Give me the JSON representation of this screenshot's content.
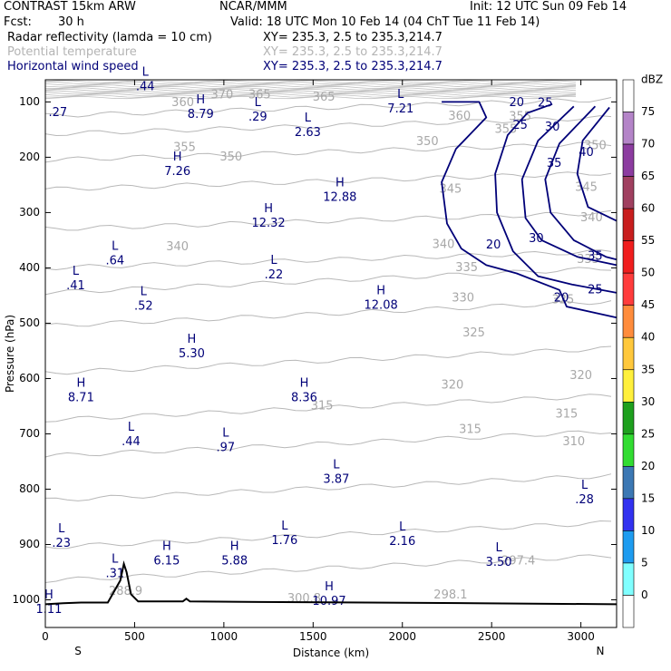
{
  "header": {
    "model": "CONTRAST 15km ARW",
    "org": "NCAR/MMM",
    "init": "Init: 12 UTC Sun 09 Feb 14",
    "fcst_label": "Fcst:",
    "fcst_value": "30 h",
    "valid": "Valid: 18 UTC Mon 10 Feb 14 (04 ChT Tue 11 Feb 14)",
    "fields": [
      {
        "name": "Radar reflectivity (lamda = 10 cm)",
        "xy": "XY= 235.3,  2.5 to 235.3,214.7",
        "color": "#000000"
      },
      {
        "name": "Potential temperature",
        "xy": "XY= 235.3,  2.5 to 235.3,214.7",
        "color": "#b4b4b4"
      },
      {
        "name": "Horizontal wind speed",
        "xy": "XY= 235.3,  2.5 to 235.3,214.7",
        "color": "#000078"
      }
    ]
  },
  "chart_data": {
    "type": "cross-section contour",
    "xlabel": "Distance (km)",
    "ylabel": "Pressure (hPa)",
    "xlim": [
      0,
      3200
    ],
    "ylim": [
      1050,
      60
    ],
    "x_ticks": [
      0,
      500,
      1000,
      1500,
      2000,
      2500,
      3000
    ],
    "y_ticks": [
      100,
      200,
      300,
      400,
      500,
      600,
      700,
      800,
      900,
      1000
    ],
    "x_end_labels": {
      "left": "S",
      "right": "N"
    },
    "theta_labels": [
      {
        "x": 990,
        "p": 88,
        "text": "370"
      },
      {
        "x": 1200,
        "p": 88,
        "text": "365"
      },
      {
        "x": 1560,
        "p": 92,
        "text": "365"
      },
      {
        "x": 770,
        "p": 102,
        "text": "360"
      },
      {
        "x": 2320,
        "p": 126,
        "text": "360"
      },
      {
        "x": 2660,
        "p": 127,
        "text": "355"
      },
      {
        "x": 2580,
        "p": 150,
        "text": "355"
      },
      {
        "x": 3080,
        "p": 180,
        "text": "350"
      },
      {
        "x": 2140,
        "p": 172,
        "text": "350"
      },
      {
        "x": 780,
        "p": 183,
        "text": "355"
      },
      {
        "x": 1040,
        "p": 200,
        "text": "350"
      },
      {
        "x": 3030,
        "p": 255,
        "text": "345"
      },
      {
        "x": 2270,
        "p": 258,
        "text": "345"
      },
      {
        "x": 3060,
        "p": 310,
        "text": "340"
      },
      {
        "x": 2230,
        "p": 358,
        "text": "340"
      },
      {
        "x": 740,
        "p": 362,
        "text": "340"
      },
      {
        "x": 3040,
        "p": 385,
        "text": "335"
      },
      {
        "x": 2360,
        "p": 400,
        "text": "335"
      },
      {
        "x": 2340,
        "p": 455,
        "text": "330"
      },
      {
        "x": 2900,
        "p": 458,
        "text": "325"
      },
      {
        "x": 2400,
        "p": 518,
        "text": "325"
      },
      {
        "x": 3000,
        "p": 595,
        "text": "320"
      },
      {
        "x": 2280,
        "p": 612,
        "text": "320"
      },
      {
        "x": 2920,
        "p": 665,
        "text": "315"
      },
      {
        "x": 1550,
        "p": 650,
        "text": "315"
      },
      {
        "x": 2380,
        "p": 693,
        "text": "315"
      },
      {
        "x": 2960,
        "p": 715,
        "text": "310"
      },
      {
        "x": 2650,
        "p": 930,
        "text": "297.4"
      },
      {
        "x": 450,
        "p": 985,
        "text": "288.9"
      },
      {
        "x": 1450,
        "p": 998,
        "text": "300.8"
      },
      {
        "x": 2270,
        "p": 992,
        "text": "298.1"
      }
    ],
    "wind_contour_labels": [
      {
        "x": 2640,
        "p": 102,
        "text": "20"
      },
      {
        "x": 2800,
        "p": 103,
        "text": "25"
      },
      {
        "x": 2660,
        "p": 143,
        "text": "25"
      },
      {
        "x": 2840,
        "p": 146,
        "text": "30"
      },
      {
        "x": 2850,
        "p": 212,
        "text": "35"
      },
      {
        "x": 3030,
        "p": 192,
        "text": "40"
      },
      {
        "x": 2510,
        "p": 359,
        "text": "20"
      },
      {
        "x": 2750,
        "p": 348,
        "text": "30"
      },
      {
        "x": 3080,
        "p": 380,
        "text": "35"
      },
      {
        "x": 2890,
        "p": 455,
        "text": "20"
      },
      {
        "x": 3080,
        "p": 440,
        "text": "25"
      }
    ],
    "hl_markers": [
      {
        "x": 560,
        "p": 60,
        "letter": "L",
        "value": ".44"
      },
      {
        "x": 70,
        "p": 107,
        "letter": "",
        "value": ".27"
      },
      {
        "x": 870,
        "p": 110,
        "letter": "H",
        "value": "8.79"
      },
      {
        "x": 1190,
        "p": 115,
        "letter": "L",
        "value": ".29"
      },
      {
        "x": 1470,
        "p": 143,
        "letter": "L",
        "value": "2.63"
      },
      {
        "x": 1990,
        "p": 100,
        "letter": "L",
        "value": "7.21"
      },
      {
        "x": 740,
        "p": 213,
        "letter": "H",
        "value": "7.26"
      },
      {
        "x": 1650,
        "p": 260,
        "letter": "H",
        "value": "12.88"
      },
      {
        "x": 1250,
        "p": 307,
        "letter": "H",
        "value": "12.32"
      },
      {
        "x": 390,
        "p": 375,
        "letter": "L",
        "value": ".64"
      },
      {
        "x": 1280,
        "p": 400,
        "letter": "L",
        "value": ".22"
      },
      {
        "x": 170,
        "p": 420,
        "letter": "L",
        "value": ".41"
      },
      {
        "x": 550,
        "p": 457,
        "letter": "L",
        "value": ".52"
      },
      {
        "x": 1880,
        "p": 455,
        "letter": "H",
        "value": "12.08"
      },
      {
        "x": 820,
        "p": 543,
        "letter": "H",
        "value": "5.30"
      },
      {
        "x": 200,
        "p": 622,
        "letter": "H",
        "value": "8.71"
      },
      {
        "x": 1450,
        "p": 622,
        "letter": "H",
        "value": "8.36"
      },
      {
        "x": 480,
        "p": 702,
        "letter": "L",
        "value": ".44"
      },
      {
        "x": 1010,
        "p": 712,
        "letter": "L",
        "value": ".97"
      },
      {
        "x": 1630,
        "p": 770,
        "letter": "L",
        "value": "3.87"
      },
      {
        "x": 3020,
        "p": 807,
        "letter": "L",
        "value": ".28"
      },
      {
        "x": 90,
        "p": 885,
        "letter": "L",
        "value": ".23"
      },
      {
        "x": 1340,
        "p": 880,
        "letter": "L",
        "value": "1.76"
      },
      {
        "x": 2000,
        "p": 882,
        "letter": "L",
        "value": "2.16"
      },
      {
        "x": 680,
        "p": 917,
        "letter": "H",
        "value": "6.15"
      },
      {
        "x": 1060,
        "p": 917,
        "letter": "H",
        "value": "5.88"
      },
      {
        "x": 2540,
        "p": 920,
        "letter": "L",
        "value": "3.50"
      },
      {
        "x": 390,
        "p": 940,
        "letter": "L",
        "value": ".31"
      },
      {
        "x": 1590,
        "p": 990,
        "letter": "H",
        "value": "10.97"
      },
      {
        "x": 20,
        "p": 1005,
        "letter": "H",
        "value": "1.11"
      }
    ],
    "wind_contours": [
      {
        "level": 20,
        "points": [
          [
            2220,
            100
          ],
          [
            2430,
            100
          ],
          [
            2470,
            128
          ],
          [
            2300,
            185
          ],
          [
            2220,
            245
          ],
          [
            2250,
            320
          ],
          [
            2330,
            365
          ],
          [
            2470,
            395
          ],
          [
            2640,
            410
          ],
          [
            2880,
            440
          ],
          [
            2920,
            470
          ],
          [
            3200,
            490
          ]
        ]
      },
      {
        "level": 25,
        "points": [
          [
            2840,
            104
          ],
          [
            2700,
            120
          ],
          [
            2590,
            160
          ],
          [
            2520,
            230
          ],
          [
            2530,
            300
          ],
          [
            2620,
            370
          ],
          [
            2760,
            415
          ],
          [
            2950,
            430
          ],
          [
            3200,
            445
          ]
        ]
      },
      {
        "level": 30,
        "points": [
          [
            2960,
            108
          ],
          [
            2760,
            170
          ],
          [
            2670,
            240
          ],
          [
            2690,
            310
          ],
          [
            2780,
            350
          ],
          [
            2980,
            380
          ],
          [
            3200,
            395
          ]
        ]
      },
      {
        "level": 35,
        "points": [
          [
            3080,
            108
          ],
          [
            2880,
            175
          ],
          [
            2800,
            240
          ],
          [
            2830,
            300
          ],
          [
            2960,
            350
          ],
          [
            3140,
            380
          ],
          [
            3200,
            385
          ]
        ]
      },
      {
        "level": 40,
        "points": [
          [
            3160,
            110
          ],
          [
            3010,
            170
          ],
          [
            2980,
            230
          ],
          [
            3040,
            290
          ],
          [
            3200,
            315
          ]
        ]
      }
    ],
    "terrain": [
      [
        0,
        1008
      ],
      [
        100,
        1006
      ],
      [
        200,
        1005
      ],
      [
        350,
        1005
      ],
      [
        420,
        965
      ],
      [
        440,
        935
      ],
      [
        455,
        950
      ],
      [
        480,
        990
      ],
      [
        520,
        1003
      ],
      [
        770,
        1003
      ],
      [
        790,
        998
      ],
      [
        810,
        1003
      ],
      [
        1200,
        1004
      ],
      [
        1800,
        1005
      ],
      [
        2400,
        1006
      ],
      [
        3200,
        1008
      ]
    ],
    "colorbar": {
      "unit": "dBZ",
      "levels": [
        "75",
        "70",
        "65",
        "60",
        "55",
        "50",
        "45",
        "40",
        "35",
        "30",
        "25",
        "20",
        "15",
        "10",
        "5",
        "0"
      ],
      "colors": [
        "#ffffff",
        "#b484c8",
        "#8c3ca0",
        "#a04060",
        "#c81e1e",
        "#f01e1e",
        "#ff3c3c",
        "#ff8c3c",
        "#ffc83c",
        "#fff03c",
        "#1ea01e",
        "#32dc32",
        "#3c78b4",
        "#3232f0",
        "#1e9cf0",
        "#80ffff",
        "#ffffff"
      ]
    }
  }
}
